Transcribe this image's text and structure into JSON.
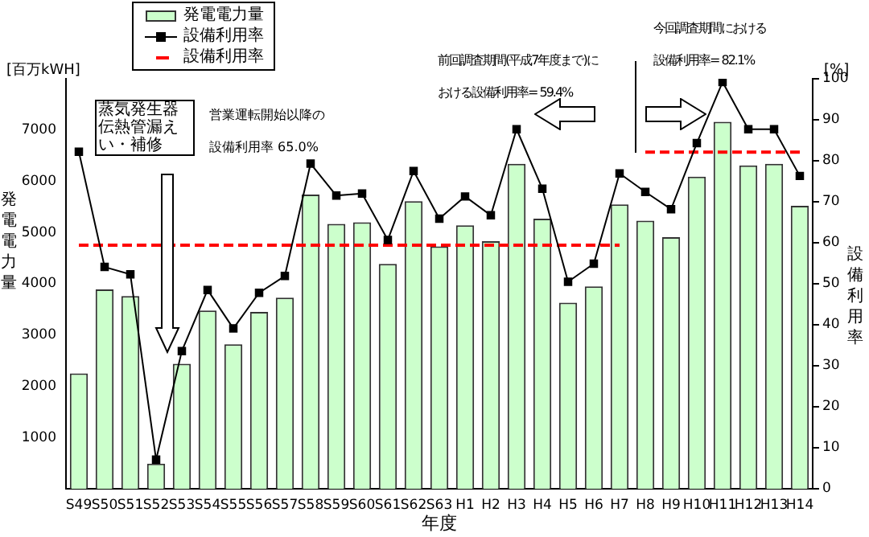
{
  "chart_data": {
    "type": "bar",
    "xlabel": "年度",
    "ylabel": "発電電力量",
    "y2label": "設備利用率",
    "categories": [
      "S49",
      "S50",
      "S51",
      "S52",
      "S53",
      "S54",
      "S55",
      "S56",
      "S57",
      "S58",
      "S59",
      "S60",
      "S61",
      "S62",
      "S63",
      "H1",
      "H2",
      "H3",
      "H4",
      "H5",
      "H6",
      "H7",
      "H8",
      "H9",
      "H10",
      "H11",
      "H12",
      "H13",
      "H14"
    ],
    "series": [
      {
        "name": "発電電力量",
        "color": "#ccffcc",
        "values": [
          2250,
          3890,
          3760,
          490,
          2440,
          3480,
          2820,
          3450,
          3730,
          5740,
          5170,
          5200,
          4390,
          5610,
          4730,
          5140,
          4830,
          6340,
          5270,
          3630,
          3950,
          5550,
          5230,
          4910,
          6090,
          7160,
          6310,
          6340,
          5520
        ]
      },
      {
        "name": "設備利用率",
        "type": "line",
        "axis": "y2",
        "color": "#000000",
        "marker": "square",
        "line_style": "solid",
        "values": [
          82.2,
          54.1,
          52.3,
          7.1,
          33.6,
          48.5,
          39.1,
          47.8,
          51.9,
          79.3,
          71.5,
          72.0,
          60.7,
          77.5,
          65.9,
          71.3,
          66.7,
          87.7,
          73.2,
          50.5,
          54.9,
          76.9,
          72.4,
          68.2,
          84.3,
          99.2,
          87.7,
          87.7,
          76.3
        ]
      },
      {
        "name": "設備利用率",
        "type": "line",
        "axis": "y2",
        "color": "#ff0000",
        "marker": "none",
        "line_style": "dashed",
        "values": [
          59.4,
          59.4,
          59.4,
          59.4,
          59.4,
          59.4,
          59.4,
          59.4,
          59.4,
          59.4,
          59.4,
          59.4,
          59.4,
          59.4,
          59.4,
          59.4,
          59.4,
          59.4,
          59.4,
          59.4,
          59.4,
          59.4,
          null,
          null,
          null,
          null,
          null,
          null,
          null
        ]
      },
      {
        "type": "line",
        "axis": "y2",
        "color": "#ff0000",
        "marker": "none",
        "line_style": "dashed",
        "values": [
          null,
          null,
          null,
          null,
          null,
          null,
          null,
          null,
          null,
          null,
          null,
          null,
          null,
          null,
          null,
          null,
          null,
          null,
          null,
          null,
          null,
          null,
          82.1,
          82.1,
          82.1,
          82.1,
          82.1,
          82.1,
          82.1
        ]
      }
    ],
    "ylim": [
      0,
      8000
    ],
    "yticks": [
      1000,
      2000,
      3000,
      4000,
      5000,
      6000,
      7000
    ],
    "y2lim": [
      0,
      100
    ],
    "y2ticks": [
      0,
      10,
      20,
      30,
      40,
      50,
      60,
      70,
      80,
      90,
      100
    ],
    "grid": false,
    "legend": "top",
    "annotations": [
      "[百万kWH]",
      "[%]",
      "蒸気発生器伝熱管漏えい・補修",
      "営業運転開始以降の設備利用率 65.0%",
      "前回調査期間(平成7年度まで)における設備利用率= 59.4%",
      "今回調査期間における設備利用率= 82.1%"
    ]
  }
}
